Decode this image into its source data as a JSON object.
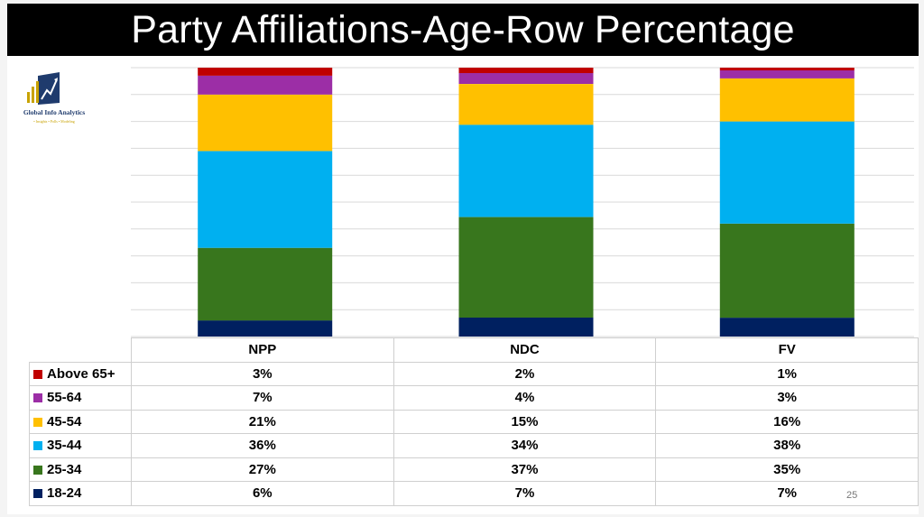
{
  "slide": {
    "title": "Party Affiliations-Age-Row Percentage",
    "page_number": "25"
  },
  "logo": {
    "name": "Global Info Analytics",
    "tagline": "• Insights • Polls • Modeling",
    "icon": "bar-growth-chart-icon"
  },
  "chart_data": {
    "type": "bar",
    "stacked": true,
    "grid": true,
    "legend": "table-below",
    "ylim": [
      0,
      100
    ],
    "categories": [
      "NPP",
      "NDC",
      "FV"
    ],
    "series": [
      {
        "name": "18-24",
        "color": "#002060",
        "values": [
          6,
          7,
          7
        ]
      },
      {
        "name": "25-34",
        "color": "#38761d",
        "values": [
          27,
          37,
          35
        ]
      },
      {
        "name": "35-44",
        "color": "#00b0f0",
        "values": [
          36,
          34,
          38
        ]
      },
      {
        "name": "45-54",
        "color": "#ffc000",
        "values": [
          21,
          15,
          16
        ]
      },
      {
        "name": "55-64",
        "color": "#9c2ea6",
        "values": [
          7,
          4,
          3
        ]
      },
      {
        "name": "Above 65+",
        "color": "#c00000",
        "values": [
          3,
          2,
          1
        ]
      }
    ]
  },
  "table": {
    "rows": [
      {
        "label": "Above 65+",
        "color": "#c00000",
        "values": [
          "3%",
          "2%",
          "1%"
        ]
      },
      {
        "label": "55-64",
        "color": "#9c2ea6",
        "values": [
          "7%",
          "4%",
          "3%"
        ]
      },
      {
        "label": "45-54",
        "color": "#ffc000",
        "values": [
          "21%",
          "15%",
          "16%"
        ]
      },
      {
        "label": "35-44",
        "color": "#00b0f0",
        "values": [
          "36%",
          "34%",
          "38%"
        ]
      },
      {
        "label": "25-34",
        "color": "#38761d",
        "values": [
          "27%",
          "37%",
          "35%"
        ]
      },
      {
        "label": "18-24",
        "color": "#002060",
        "values": [
          "6%",
          "7%",
          "7%"
        ]
      }
    ]
  }
}
